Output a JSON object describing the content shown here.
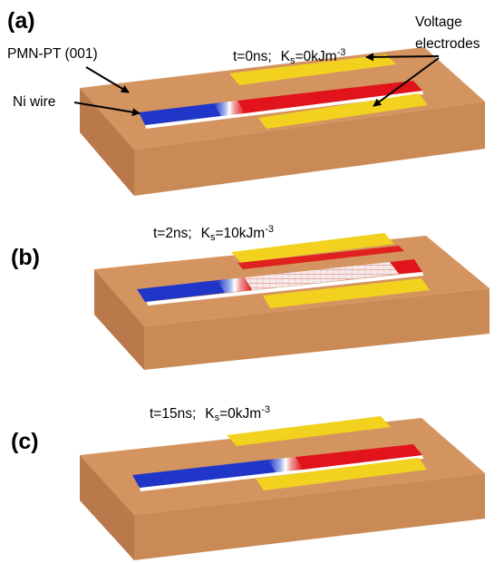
{
  "panels": [
    {
      "label": "(a)",
      "time": "t=0ns;",
      "ks_prefix": "K",
      "ks_sub": "s",
      "ks_value": "=0kJm",
      "ks_exp": "-3"
    },
    {
      "label": "(b)",
      "time": "t=2ns;",
      "ks_prefix": "K",
      "ks_sub": "s",
      "ks_value": "=10kJm",
      "ks_exp": "-3"
    },
    {
      "label": "(c)",
      "time": "t=15ns;",
      "ks_prefix": "K",
      "ks_sub": "s",
      "ks_value": "=0kJm",
      "ks_exp": "-3"
    }
  ],
  "annotations": {
    "substrate": "PMN-PT (001)",
    "wire": "Ni wire",
    "electrodes_line1": "Voltage",
    "electrodes_line2": "electrodes"
  },
  "colors": {
    "substrate_top": "#d49460",
    "substrate_front": "#c98a56",
    "substrate_side": "#b9794a",
    "electrode": "#f2d21f",
    "domain_left": "#1f36c8",
    "domain_right": "#e0141a",
    "wall": "#f4f4f4"
  }
}
